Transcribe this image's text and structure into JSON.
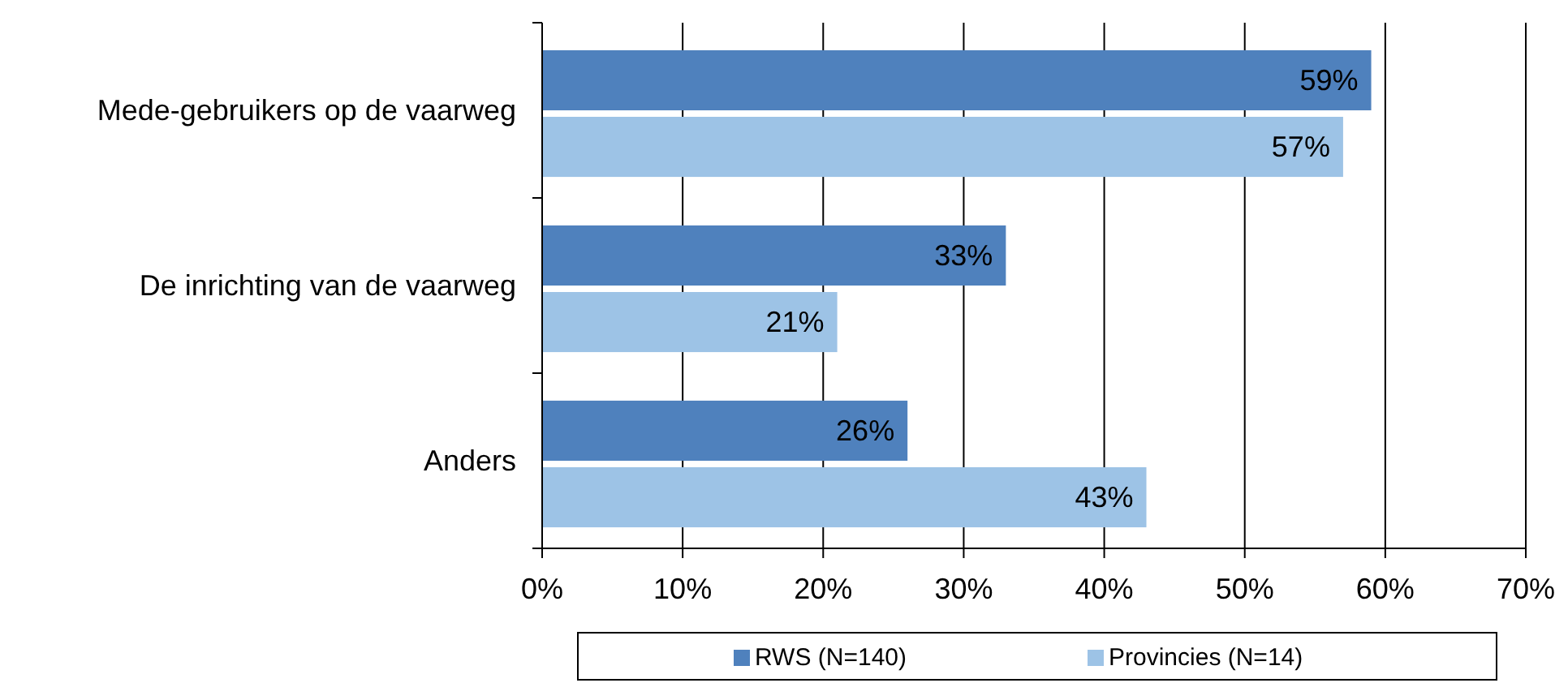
{
  "chart_data": {
    "type": "bar",
    "orientation": "horizontal",
    "categories": [
      "Mede-gebruikers op de vaarweg",
      "De inrichting van de vaarweg",
      "Anders"
    ],
    "series": [
      {
        "name": "RWS (N=140)",
        "color": "#4f81bd",
        "values": [
          59,
          33,
          26
        ],
        "value_labels": [
          "59%",
          "33%",
          "26%"
        ]
      },
      {
        "name": "Provincies (N=14)",
        "color": "#9dc3e6",
        "values": [
          57,
          21,
          43
        ],
        "value_labels": [
          "57%",
          "21%",
          "43%"
        ]
      }
    ],
    "xlim": [
      0,
      70
    ],
    "xticks": [
      {
        "value": 0,
        "label": "0%"
      },
      {
        "value": 10,
        "label": "10%"
      },
      {
        "value": 20,
        "label": "20%"
      },
      {
        "value": 30,
        "label": "30%"
      },
      {
        "value": 40,
        "label": "40%"
      },
      {
        "value": 50,
        "label": "50%"
      },
      {
        "value": 60,
        "label": "60%"
      },
      {
        "value": 70,
        "label": "70%"
      }
    ],
    "grid": "x",
    "legend": "bottom"
  }
}
